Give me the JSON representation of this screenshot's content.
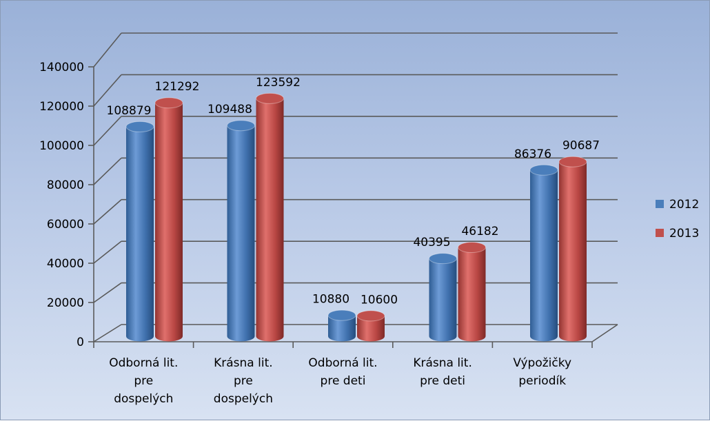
{
  "chart_data": {
    "type": "bar",
    "variant": "3d-cylinder",
    "categories": [
      [
        "Odborná lit.",
        "pre",
        "dospelých"
      ],
      [
        "Krásna lit.",
        "pre",
        "dospelých"
      ],
      [
        "Odborná lit.",
        "pre deti"
      ],
      [
        "Krásna lit.",
        "pre deti"
      ],
      [
        "Výpožičky",
        "periodík"
      ]
    ],
    "series": [
      {
        "name": "2012",
        "color": "#4a7ebb",
        "values": [
          108879,
          109488,
          10880,
          40395,
          86376
        ]
      },
      {
        "name": "2013",
        "color": "#c0504d",
        "values": [
          121292,
          123592,
          10600,
          46182,
          90687
        ]
      }
    ],
    "yticks": [
      "0",
      "20000",
      "40000",
      "60000",
      "80000",
      "100000",
      "120000",
      "140000"
    ],
    "ylim": [
      0,
      140000
    ],
    "grid": true,
    "legend_position": "right",
    "title": "",
    "xlabel": "",
    "ylabel": ""
  }
}
